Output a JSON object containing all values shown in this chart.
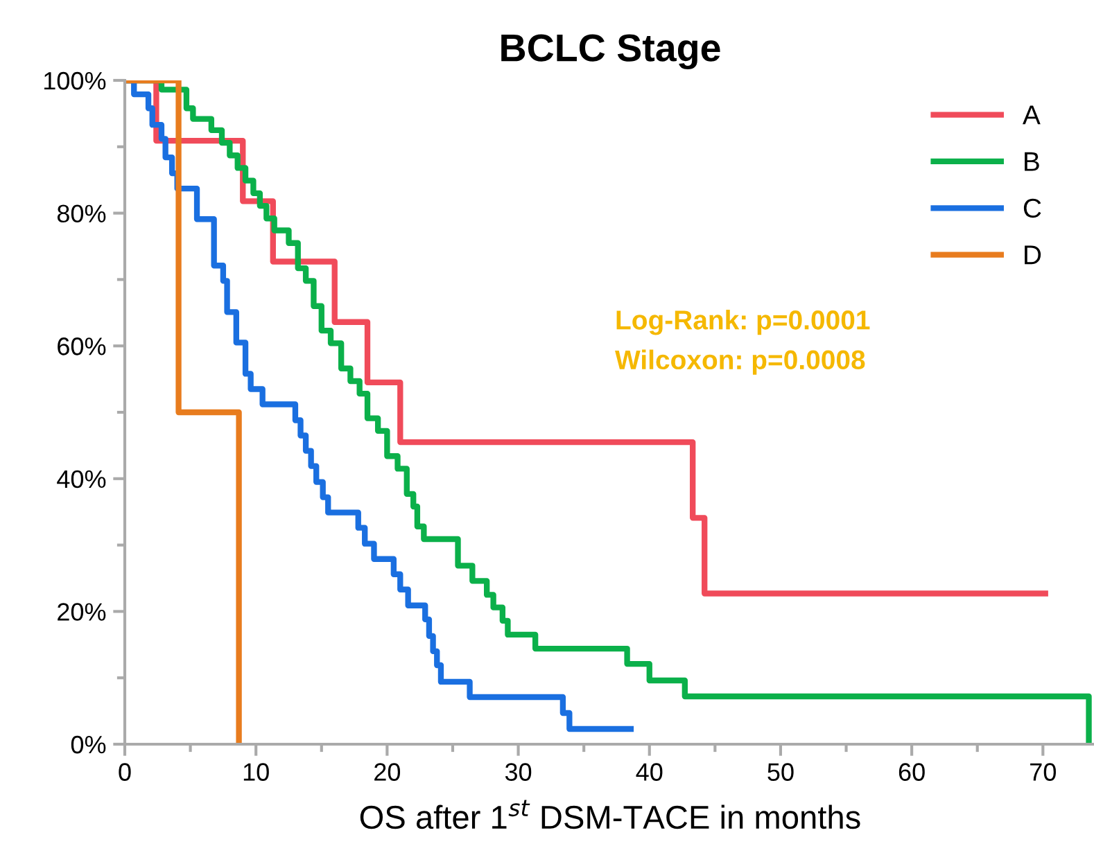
{
  "chart_data": {
    "type": "step",
    "title": "BCLC Stage",
    "xlabel": "OS after 1$^{st}$ DSM-TACE in months",
    "xlim": [
      0,
      74
    ],
    "xticks": [
      0,
      10,
      20,
      30,
      40,
      50,
      60,
      70
    ],
    "ylim": [
      0,
      100
    ],
    "yticks": [
      {
        "value": 0,
        "label": "0%"
      },
      {
        "value": 20,
        "label": "20%"
      },
      {
        "value": 40,
        "label": "40%"
      },
      {
        "value": 60,
        "label": "60%"
      },
      {
        "value": 80,
        "label": "80%"
      },
      {
        "value": 100,
        "label": "100%"
      }
    ],
    "legend": "top right",
    "grid": false,
    "marker": "none",
    "line_style": "solid",
    "annotations": [
      "Log-Rank: p=0.0001",
      "Wilcoxon: p=0.0008"
    ],
    "series": [
      {
        "name": "A",
        "color": "#f04b5a",
        "x": [
          0,
          2.4,
          9.0,
          11.3,
          16.0,
          18.5,
          21.0,
          43.3,
          44.2,
          70.4
        ],
        "values": [
          100,
          90.9,
          81.8,
          72.7,
          63.6,
          54.5,
          45.5,
          34.1,
          22.7,
          22.7
        ]
      },
      {
        "name": "B",
        "color": "#0bb04a",
        "x": [
          0,
          2.8,
          4.7,
          5.2,
          6.6,
          7.4,
          8.0,
          8.6,
          9.2,
          9.8,
          10.3,
          10.8,
          11.4,
          12.5,
          13.2,
          13.8,
          14.4,
          15.0,
          15.7,
          16.5,
          17.2,
          17.9,
          18.5,
          19.3,
          20.0,
          20.8,
          21.5,
          22.0,
          22.3,
          22.8,
          25.4,
          26.5,
          27.6,
          28.1,
          28.8,
          29.2,
          31.3,
          38.3,
          40.0,
          42.7,
          73.5,
          73.5
        ],
        "values": [
          100,
          98.6,
          95.8,
          94.2,
          92.5,
          90.6,
          88.7,
          86.8,
          84.9,
          83.0,
          81.1,
          79.2,
          77.4,
          75.5,
          71.7,
          69.8,
          66.0,
          62.3,
          60.4,
          56.6,
          54.7,
          52.8,
          49.1,
          47.2,
          43.4,
          41.5,
          37.7,
          35.8,
          32.8,
          30.9,
          26.9,
          24.6,
          22.5,
          20.6,
          18.6,
          16.5,
          14.4,
          12.1,
          9.6,
          7.2,
          7.2,
          0
        ]
      },
      {
        "name": "C",
        "color": "#1a6fe0",
        "x": [
          0,
          0.7,
          1.8,
          2.1,
          2.8,
          3.1,
          3.6,
          4.0,
          5.5,
          6.8,
          7.5,
          7.8,
          8.5,
          9.2,
          9.6,
          10.5,
          13.0,
          13.4,
          13.8,
          14.2,
          14.6,
          15.1,
          15.5,
          17.8,
          18.3,
          19.0,
          20.5,
          21.0,
          21.6,
          22.9,
          23.2,
          23.5,
          23.8,
          24.1,
          26.3,
          33.4,
          33.9,
          38.8
        ],
        "values": [
          100,
          97.9,
          95.8,
          93.3,
          91.2,
          88.4,
          86.0,
          83.7,
          79.1,
          72.1,
          69.8,
          65.1,
          60.5,
          55.8,
          53.5,
          51.2,
          48.8,
          46.5,
          44.2,
          41.9,
          39.5,
          37.2,
          34.9,
          32.6,
          30.2,
          27.9,
          25.6,
          23.3,
          20.9,
          18.8,
          16.3,
          14.0,
          11.9,
          9.4,
          7.1,
          4.7,
          2.3,
          2.3
        ]
      },
      {
        "name": "D",
        "color": "#e87c1e",
        "x": [
          0,
          4.1,
          8.7
        ],
        "values": [
          100,
          50,
          0
        ]
      }
    ]
  }
}
